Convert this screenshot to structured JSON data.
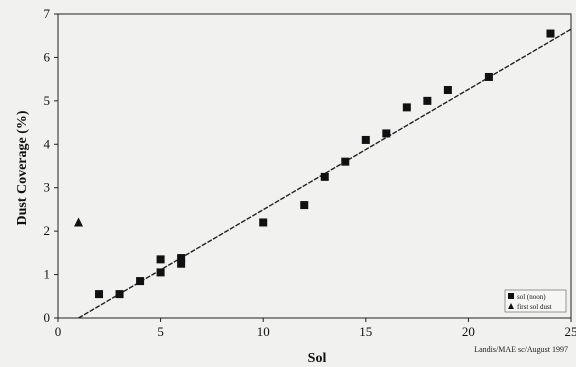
{
  "chart_data": {
    "type": "scatter",
    "xlabel": "Sol",
    "ylabel": "Dust Coverage (%)",
    "xlim": [
      0,
      25
    ],
    "ylim": [
      0,
      7
    ],
    "xticks": [
      0,
      5,
      10,
      15,
      20,
      25
    ],
    "yticks": [
      0,
      1,
      2,
      3,
      4,
      5,
      6,
      7
    ],
    "grid": false,
    "legend_position": "bottom-right",
    "series": [
      {
        "name": "sol (noon)",
        "marker": "square",
        "color": "#111111",
        "x": [
          2,
          3,
          4,
          5,
          5,
          6,
          6,
          10,
          12,
          13,
          14,
          15,
          16,
          17,
          18,
          19,
          21,
          24
        ],
        "y": [
          0.55,
          0.55,
          0.85,
          1.05,
          1.35,
          1.25,
          1.38,
          2.2,
          2.6,
          3.25,
          3.6,
          4.1,
          4.25,
          4.85,
          5.0,
          5.25,
          5.55,
          6.55
        ]
      },
      {
        "name": "first sol dust",
        "marker": "triangle",
        "color": "#111111",
        "x": [
          1
        ],
        "y": [
          2.2
        ]
      }
    ],
    "trendline": {
      "x": [
        1,
        25
      ],
      "y": [
        0.0,
        6.65
      ],
      "style": "dashed",
      "color": "#222222"
    },
    "credit": "Landis/MAE sc/August 1997"
  }
}
